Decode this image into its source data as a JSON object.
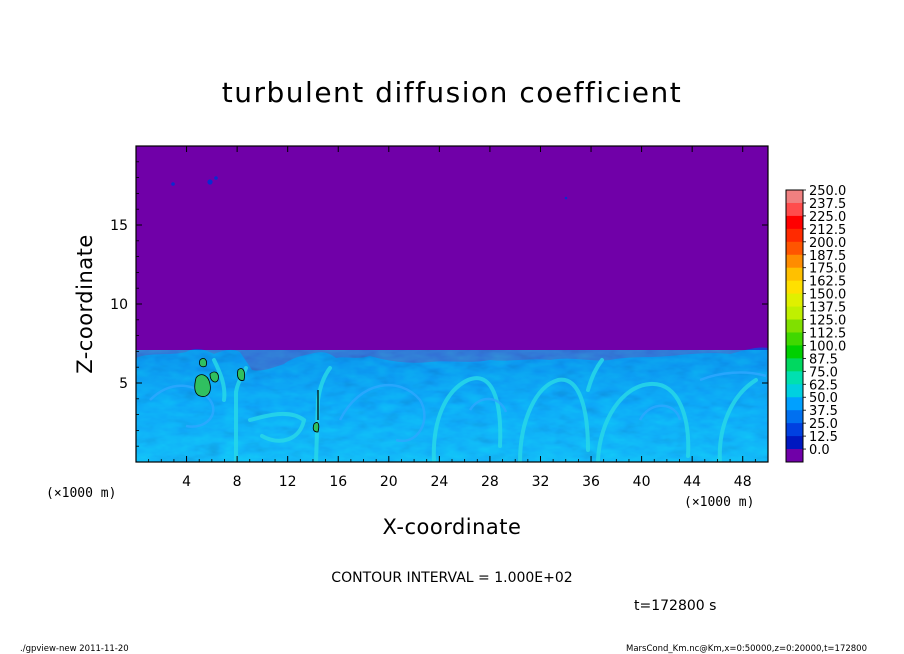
{
  "chart_data": {
    "type": "heatmap",
    "title": "turbulent diffusion coefficient",
    "xlabel": "X-coordinate",
    "ylabel": "Z-coordinate",
    "x_unit": "(×1000 m)",
    "y_unit": "(×1000 m)",
    "xlim": [
      0,
      50
    ],
    "ylim": [
      0,
      20
    ],
    "x_ticks": [
      4,
      8,
      12,
      16,
      20,
      24,
      28,
      32,
      36,
      40,
      44,
      48
    ],
    "y_ticks": [
      5,
      10,
      15
    ],
    "colorbar_levels": [
      "250.0",
      "237.5",
      "225.0",
      "212.5",
      "200.0",
      "187.5",
      "175.0",
      "162.5",
      "150.0",
      "137.5",
      "125.0",
      "112.5",
      "100.0",
      "87.5",
      "75.0",
      "62.5",
      "50.0",
      "37.5",
      "25.0",
      "12.5",
      "0.0"
    ],
    "colorbar_colors": [
      "#f08080",
      "#ff4c4c",
      "#ff0000",
      "#ff2a00",
      "#ff5500",
      "#ff8c00",
      "#ffc000",
      "#ffe000",
      "#e0f000",
      "#c0f000",
      "#80e000",
      "#40d800",
      "#00d000",
      "#00d860",
      "#00e0b0",
      "#00d0e0",
      "#00a0ff",
      "#0070f0",
      "#0040e0",
      "#0018c0",
      "#7000a8"
    ],
    "contour_interval": "CONTOUR INTERVAL = 1.000E+02",
    "time_label": "t=172800 s",
    "background_value": "0.0",
    "turbulent_layer_top_km": 6.5,
    "grid": false,
    "colorbar_position": "right"
  },
  "footer": {
    "left": "./gpview-new  2011-11-20",
    "right": "MarsCond_Km.nc@Km,x=0:50000,z=0:20000,t=172800"
  }
}
